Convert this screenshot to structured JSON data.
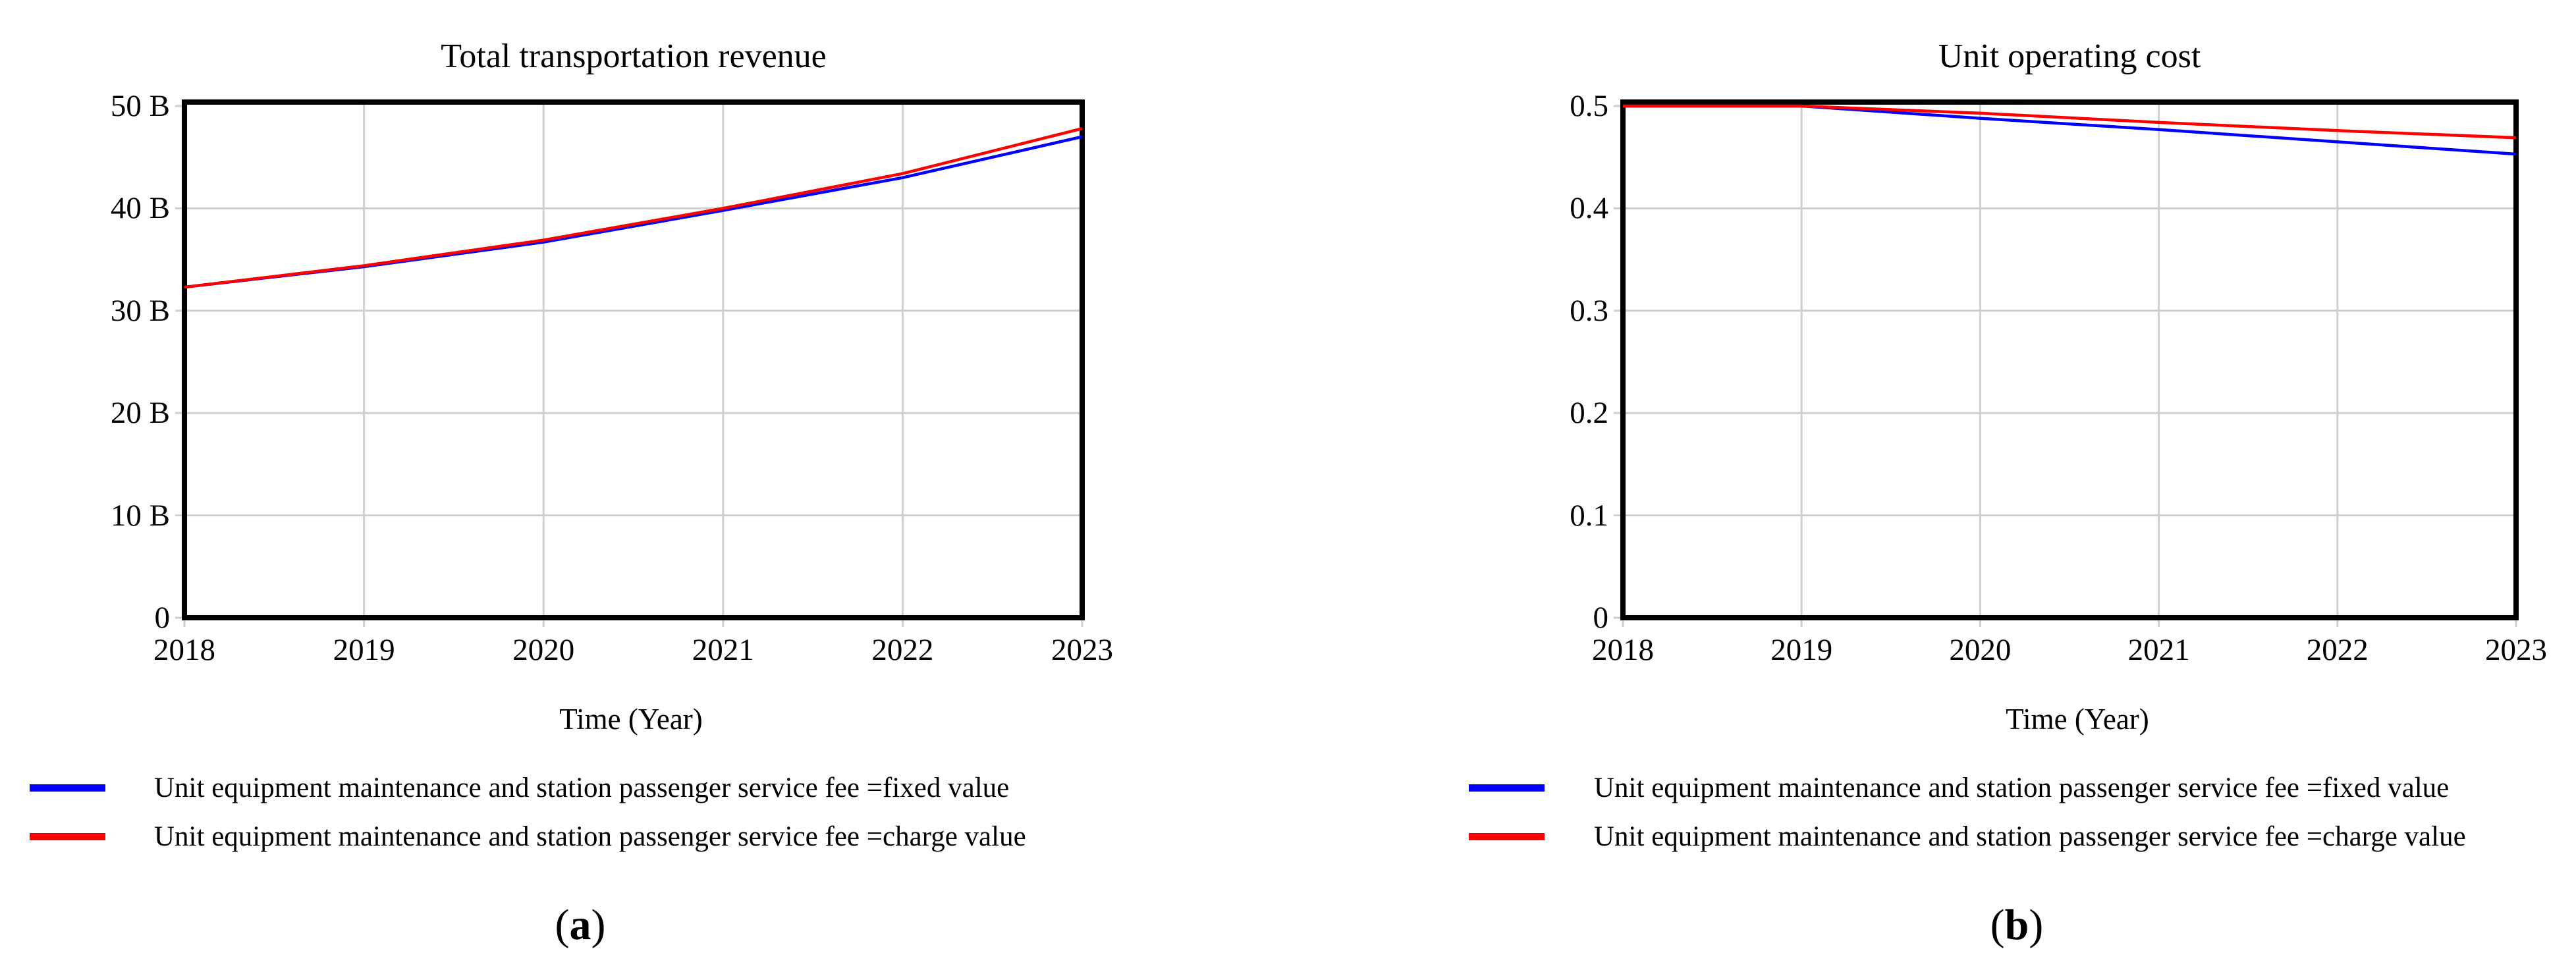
{
  "figure": {
    "panels": [
      {
        "caption_letter": "a"
      },
      {
        "caption_letter": "b"
      }
    ]
  },
  "captions": {
    "open": "(",
    "close": ")"
  },
  "colors": {
    "fixed_line": "#0000FF",
    "charge_line": "#FF0000",
    "grid": "#CFCFCF",
    "axis": "#000000"
  },
  "chart_data": [
    {
      "type": "line",
      "title": "Total transportation revenue",
      "xlabel": "Time (Year)",
      "x": [
        2018,
        2019,
        2020,
        2021,
        2022,
        2023
      ],
      "x_tick_labels": [
        "2018",
        "2019",
        "2020",
        "2021",
        "2022",
        "2023"
      ],
      "ylim": [
        0,
        50
      ],
      "y_ticks": [
        0,
        10,
        20,
        30,
        40,
        50
      ],
      "y_tick_labels": [
        "0",
        "10 B",
        "20 B",
        "30 B",
        "40 B",
        "50 B"
      ],
      "grid": true,
      "legend_position": "below-left",
      "series": [
        {
          "name": "Unit equipment maintenance and station passenger service fee =fixed value",
          "color": "#0000FF",
          "values": [
            32.3,
            34.3,
            36.7,
            39.8,
            43.0,
            47.0
          ]
        },
        {
          "name": "Unit equipment maintenance and station passenger service fee =charge value",
          "color": "#FF0000",
          "values": [
            32.3,
            34.4,
            36.9,
            40.0,
            43.4,
            47.8
          ]
        }
      ]
    },
    {
      "type": "line",
      "title": "Unit operating cost",
      "xlabel": "Time (Year)",
      "x": [
        2018,
        2019,
        2020,
        2021,
        2022,
        2023
      ],
      "x_tick_labels": [
        "2018",
        "2019",
        "2020",
        "2021",
        "2022",
        "2023"
      ],
      "ylim": [
        0,
        0.5
      ],
      "y_ticks": [
        0,
        0.1,
        0.2,
        0.3,
        0.4,
        0.5
      ],
      "y_tick_labels": [
        "0",
        "0.1",
        "0.2",
        "0.3",
        "0.4",
        "0.5"
      ],
      "grid": true,
      "legend_position": "below-left",
      "series": [
        {
          "name": "Unit equipment maintenance and station passenger service fee =fixed value",
          "color": "#0000FF",
          "values": [
            0.5,
            0.5,
            0.488,
            0.477,
            0.465,
            0.453
          ]
        },
        {
          "name": "Unit equipment maintenance and station passenger service fee =charge value",
          "color": "#FF0000",
          "values": [
            0.5,
            0.5,
            0.493,
            0.484,
            0.476,
            0.469
          ]
        }
      ]
    }
  ]
}
